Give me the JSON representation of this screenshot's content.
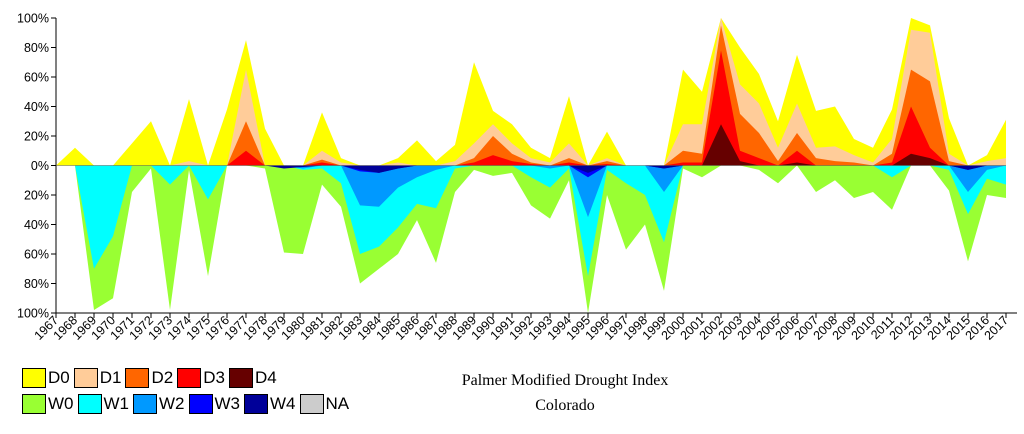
{
  "chart_data": {
    "type": "area",
    "title": "Palmer Modified Drought Index",
    "subtitle": "Colorado",
    "x": [
      "1967",
      "1968",
      "1969",
      "1970",
      "1971",
      "1972",
      "1973",
      "1974",
      "1975",
      "1976",
      "1977",
      "1978",
      "1979",
      "1980",
      "1981",
      "1982",
      "1983",
      "1984",
      "1985",
      "1986",
      "1987",
      "1988",
      "1989",
      "1990",
      "1991",
      "1992",
      "1993",
      "1994",
      "1995",
      "1996",
      "1997",
      "1998",
      "1999",
      "2000",
      "2001",
      "2002",
      "2003",
      "2004",
      "2005",
      "2006",
      "2007",
      "2008",
      "2009",
      "2010",
      "2011",
      "2012",
      "2013",
      "2014",
      "2015",
      "2016",
      "2017"
    ],
    "y_ticks": [
      "100%",
      "80%",
      "60%",
      "40%",
      "20%",
      "0%",
      "20%",
      "40%",
      "60%",
      "80%",
      "100%"
    ],
    "ylim": [
      -100,
      100
    ],
    "drought_series": [
      {
        "name": "D0",
        "color": "#ffff00",
        "values": [
          0,
          12,
          0,
          0,
          15,
          30,
          0,
          45,
          0,
          38,
          85,
          25,
          0,
          0,
          36,
          5,
          0,
          0,
          5,
          17,
          3,
          14,
          70,
          37,
          28,
          12,
          5,
          47,
          0,
          23,
          0,
          0,
          0,
          65,
          50,
          100,
          80,
          62,
          30,
          75,
          37,
          40,
          18,
          12,
          38,
          100,
          95,
          32,
          0,
          7,
          31
        ]
      },
      {
        "name": "D1",
        "color": "#ffcc99",
        "values": [
          0,
          0,
          0,
          0,
          0,
          0,
          0,
          3,
          0,
          0,
          65,
          0,
          0,
          0,
          10,
          2,
          0,
          0,
          2,
          0,
          0,
          3,
          15,
          28,
          15,
          5,
          2,
          15,
          0,
          5,
          0,
          0,
          0,
          28,
          28,
          100,
          55,
          42,
          12,
          42,
          12,
          13,
          7,
          2,
          18,
          92,
          90,
          8,
          0,
          3,
          5
        ]
      },
      {
        "name": "D2",
        "color": "#ff6600",
        "values": [
          0,
          0,
          0,
          0,
          0,
          0,
          0,
          0,
          0,
          0,
          30,
          0,
          0,
          0,
          4,
          0,
          0,
          0,
          0,
          0,
          0,
          0,
          5,
          20,
          8,
          2,
          0,
          5,
          0,
          3,
          0,
          0,
          0,
          10,
          8,
          95,
          35,
          22,
          3,
          22,
          5,
          3,
          2,
          0,
          8,
          65,
          57,
          3,
          0,
          0,
          0
        ]
      },
      {
        "name": "D3",
        "color": "#ff0000",
        "values": [
          0,
          0,
          0,
          0,
          0,
          0,
          0,
          0,
          0,
          0,
          10,
          0,
          0,
          0,
          2,
          0,
          0,
          0,
          0,
          0,
          0,
          0,
          2,
          7,
          3,
          1,
          0,
          2,
          0,
          1,
          0,
          0,
          0,
          2,
          2,
          78,
          10,
          5,
          0,
          10,
          0,
          0,
          0,
          0,
          2,
          40,
          12,
          0,
          0,
          0,
          0
        ]
      },
      {
        "name": "D4",
        "color": "#660000",
        "values": [
          0,
          0,
          0,
          0,
          0,
          0,
          0,
          0,
          0,
          0,
          0,
          0,
          0,
          0,
          0,
          0,
          0,
          0,
          0,
          0,
          0,
          0,
          0,
          0,
          0,
          0,
          0,
          0,
          0,
          0,
          0,
          0,
          0,
          0,
          0,
          28,
          3,
          0,
          0,
          2,
          0,
          0,
          0,
          0,
          0,
          8,
          5,
          0,
          0,
          0,
          0
        ]
      }
    ],
    "wet_series": [
      {
        "name": "W0",
        "color": "#99ff33",
        "values": [
          0,
          0,
          98,
          90,
          18,
          2,
          98,
          3,
          75,
          0,
          0,
          2,
          59,
          60,
          13,
          28,
          80,
          70,
          60,
          37,
          66,
          18,
          3,
          7,
          5,
          27,
          36,
          10,
          100,
          20,
          57,
          40,
          85,
          2,
          8,
          0,
          0,
          3,
          12,
          0,
          18,
          10,
          22,
          18,
          30,
          0,
          0,
          17,
          65,
          20,
          22
        ]
      },
      {
        "name": "W1",
        "color": "#00ffff",
        "values": [
          0,
          0,
          70,
          48,
          0,
          0,
          13,
          0,
          23,
          0,
          0,
          0,
          0,
          3,
          2,
          12,
          60,
          55,
          42,
          26,
          29,
          2,
          0,
          0,
          0,
          8,
          15,
          2,
          75,
          3,
          12,
          20,
          52,
          0,
          0,
          0,
          0,
          0,
          0,
          0,
          0,
          0,
          0,
          0,
          8,
          0,
          0,
          3,
          33,
          9,
          13
        ]
      },
      {
        "name": "W2",
        "color": "#0099ff",
        "values": [
          0,
          0,
          0,
          0,
          0,
          0,
          0,
          0,
          0,
          0,
          0,
          0,
          0,
          2,
          0,
          0,
          27,
          28,
          15,
          8,
          3,
          0,
          0,
          0,
          0,
          0,
          2,
          0,
          35,
          0,
          0,
          0,
          18,
          0,
          0,
          0,
          0,
          0,
          0,
          0,
          0,
          0,
          0,
          0,
          0,
          0,
          0,
          0,
          18,
          3,
          0
        ]
      },
      {
        "name": "W3",
        "color": "#0000ff",
        "values": [
          0,
          0,
          0,
          0,
          0,
          0,
          0,
          0,
          0,
          0,
          0,
          0,
          0,
          0,
          0,
          0,
          4,
          5,
          2,
          0,
          0,
          0,
          0,
          0,
          0,
          0,
          0,
          0,
          8,
          0,
          0,
          0,
          2,
          0,
          0,
          0,
          0,
          0,
          0,
          0,
          0,
          0,
          0,
          0,
          0,
          0,
          0,
          0,
          3,
          0,
          0
        ]
      },
      {
        "name": "W4",
        "color": "#000099",
        "values": [
          0,
          0,
          0,
          0,
          0,
          0,
          0,
          0,
          0,
          0,
          0,
          0,
          2,
          1,
          0,
          0,
          3,
          5,
          2,
          0,
          0,
          0,
          0,
          0,
          0,
          0,
          0,
          0,
          5,
          0,
          0,
          0,
          2,
          0,
          0,
          0,
          0,
          0,
          0,
          0,
          0,
          0,
          0,
          0,
          0,
          0,
          0,
          0,
          3,
          0,
          0
        ]
      }
    ],
    "legend": [
      {
        "name": "D0",
        "color": "#ffff00"
      },
      {
        "name": "D1",
        "color": "#ffcc99"
      },
      {
        "name": "D2",
        "color": "#ff6600"
      },
      {
        "name": "D3",
        "color": "#ff0000"
      },
      {
        "name": "D4",
        "color": "#660000"
      },
      {
        "name": "W0",
        "color": "#99ff33"
      },
      {
        "name": "W1",
        "color": "#00ffff"
      },
      {
        "name": "W2",
        "color": "#0099ff"
      },
      {
        "name": "W3",
        "color": "#0000ff"
      },
      {
        "name": "W4",
        "color": "#000099"
      },
      {
        "name": "NA",
        "color": "#cccccc"
      }
    ],
    "legend_position": "bottom-left",
    "grid": false
  }
}
